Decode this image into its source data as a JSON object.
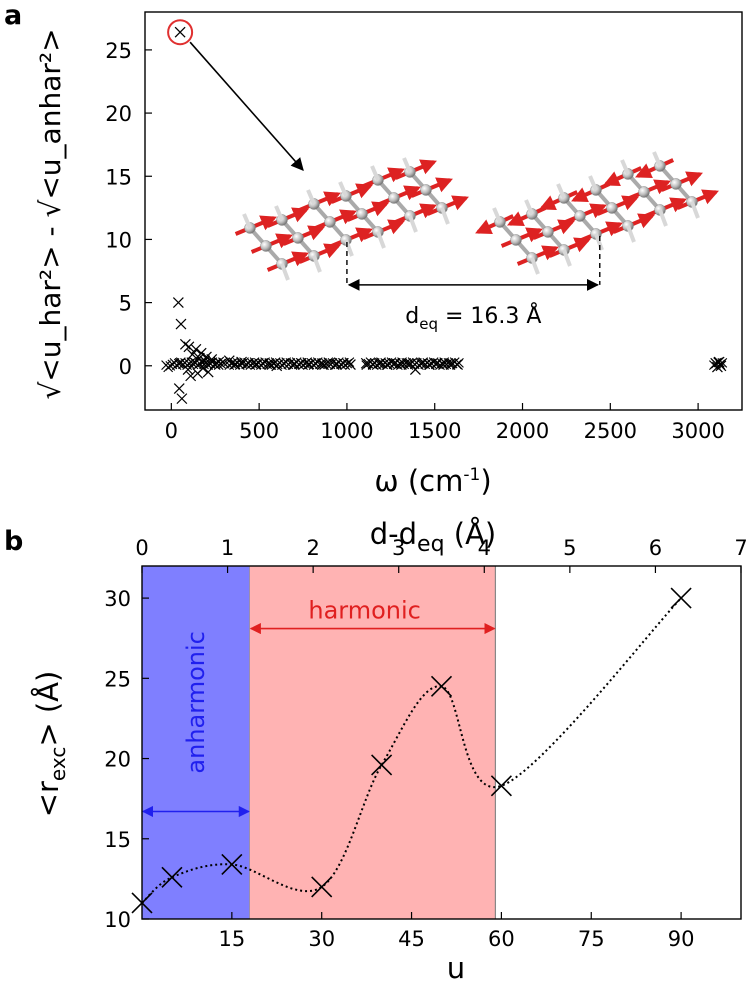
{
  "chart_data": [
    {
      "type": "scatter",
      "panel_label": "a",
      "xlabel": "ω (cm",
      "xlabel_sup": "-1",
      "xlabel_end": ")",
      "ylabel": "√<u_har²> - √<u_anhar²>",
      "xlim": [
        -150,
        3250
      ],
      "ylim": [
        -3.5,
        28
      ],
      "xticks": [
        0,
        500,
        1000,
        1500,
        2000,
        2500,
        3000
      ],
      "yticks": [
        0,
        5,
        10,
        15,
        20,
        25
      ],
      "marker": "x",
      "highlighted_point": {
        "x": 50,
        "y": 26.4,
        "circle_color": "#e03030"
      },
      "annotation": {
        "text": "d",
        "sub": "eq",
        "rest": " = 16.3 Å",
        "d_eq_from_x": 1000,
        "d_eq_to_x": 2440,
        "d_eq_y": 6.4
      },
      "points": [
        [
          40,
          5.0
        ],
        [
          55,
          3.3
        ],
        [
          45,
          -1.8
        ],
        [
          60,
          -2.6
        ],
        [
          50,
          0.2
        ],
        [
          80,
          1.7
        ],
        [
          100,
          1.5
        ],
        [
          95,
          -0.3
        ],
        [
          110,
          -0.8
        ],
        [
          120,
          0.9
        ],
        [
          130,
          0.3
        ],
        [
          140,
          1.3
        ],
        [
          150,
          -0.6
        ],
        [
          160,
          0.6
        ],
        [
          170,
          1.0
        ],
        [
          180,
          -0.2
        ],
        [
          190,
          0.4
        ],
        [
          200,
          0.7
        ],
        [
          210,
          -0.5
        ],
        [
          220,
          0.2
        ],
        [
          230,
          0.5
        ],
        [
          250,
          0.1
        ],
        [
          270,
          0.3
        ],
        [
          300,
          0.2
        ],
        [
          330,
          0.4
        ],
        [
          360,
          0.1
        ],
        [
          400,
          0.3
        ],
        [
          440,
          0.2
        ],
        [
          480,
          0.1
        ],
        [
          520,
          0.2
        ],
        [
          560,
          0.1
        ],
        [
          600,
          0.0
        ],
        [
          640,
          0.2
        ],
        [
          700,
          0.1
        ],
        [
          740,
          0.2
        ],
        [
          780,
          0.1
        ],
        [
          820,
          0.2
        ],
        [
          860,
          0.1
        ],
        [
          900,
          0.2
        ],
        [
          940,
          0.1
        ],
        [
          980,
          0.2
        ],
        [
          1020,
          0.1
        ],
        [
          1110,
          0.2
        ],
        [
          1150,
          0.1
        ],
        [
          1190,
          0.2
        ],
        [
          1230,
          0.1
        ],
        [
          1270,
          0.2
        ],
        [
          1310,
          0.1
        ],
        [
          1350,
          0.2
        ],
        [
          1390,
          -0.3
        ],
        [
          1430,
          0.2
        ],
        [
          1470,
          0.1
        ],
        [
          1510,
          0.2
        ],
        [
          1550,
          0.1
        ],
        [
          1590,
          0.2
        ],
        [
          1630,
          0.1
        ],
        [
          3100,
          0.2
        ],
        [
          3110,
          -0.1
        ],
        [
          3120,
          0.3
        ],
        [
          3130,
          0.0
        ]
      ],
      "mode_bars": [
        [
          -30,
          300
        ],
        [
          330,
          1020
        ],
        [
          1110,
          1640
        ],
        [
          3090,
          3140
        ]
      ],
      "dense_range": [
        0,
        1640
      ],
      "dense_y": [
        0.05,
        0.35
      ],
      "displacement_color": "#dd2222"
    },
    {
      "type": "line",
      "panel_label": "b",
      "xlabel": "u",
      "ylabel": "<r",
      "ylabel_sub": "exc",
      "ylabel_end": "> (Å)",
      "x2label": "d-d",
      "x2label_sub": "eq",
      "x2label_end": " (Å)",
      "xlim": [
        0,
        100
      ],
      "ylim": [
        10,
        32
      ],
      "xticks": [
        15,
        30,
        45,
        60,
        75,
        90
      ],
      "yticks": [
        10,
        15,
        20,
        25,
        30
      ],
      "x2lim": [
        0,
        7
      ],
      "x2ticks": [
        0,
        1,
        2,
        3,
        4,
        5,
        6,
        7
      ],
      "marker": "x",
      "x": [
        0,
        5,
        15,
        30,
        40,
        50,
        60,
        90
      ],
      "y": [
        11.0,
        12.6,
        13.4,
        12.0,
        19.6,
        24.5,
        18.3,
        30.0
      ],
      "regions": [
        {
          "label": "anharmonic",
          "from": 0,
          "to": 18,
          "color": "#7f7fff",
          "label_color": "#2020ee",
          "arrow_y": 16.7
        },
        {
          "label": "harmonic",
          "from": 18,
          "to": 59,
          "color": "#ffb3b3",
          "label_color": "#e02020",
          "arrow_y": 28.1
        }
      ]
    }
  ]
}
